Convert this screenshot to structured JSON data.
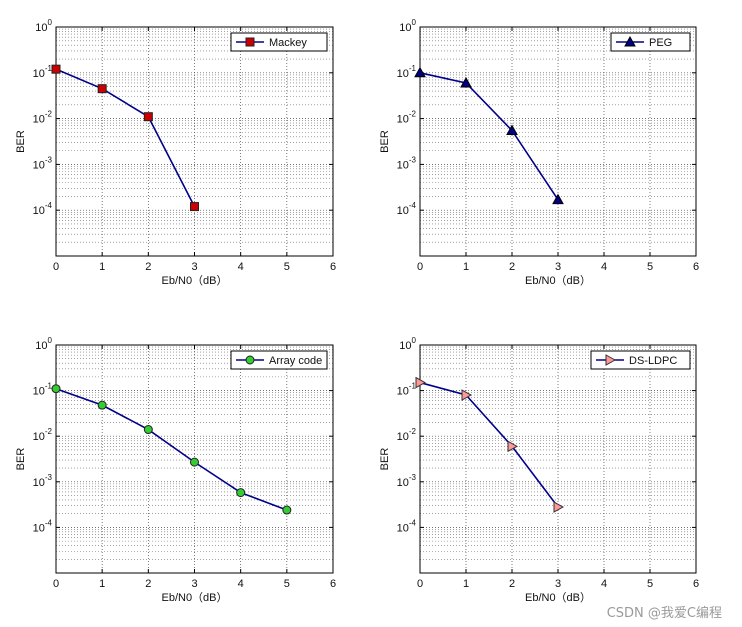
{
  "chart_data": [
    {
      "type": "line",
      "xlabel": "Eb/N0（dB）",
      "ylabel": "BER",
      "x_scale": "linear",
      "y_scale": "log",
      "xlim": [
        0,
        6
      ],
      "ylim": [
        1e-05,
        1
      ],
      "xticks": [
        0,
        1,
        2,
        3,
        4,
        5,
        6
      ],
      "yticks": [
        1,
        0.1,
        0.01,
        0.001,
        0.0001
      ],
      "grid": true,
      "legend": "top-right",
      "series": [
        {
          "name": "Mackey",
          "marker": "square",
          "marker_color": "#cc0000",
          "line_color": "#00008b",
          "x": [
            0,
            1,
            2,
            3
          ],
          "y": [
            0.12,
            0.045,
            0.011,
            0.00012
          ]
        }
      ]
    },
    {
      "type": "line",
      "xlabel": "Eb/N0（dB）",
      "ylabel": "BER",
      "x_scale": "linear",
      "y_scale": "log",
      "xlim": [
        0,
        6
      ],
      "ylim": [
        1e-05,
        1
      ],
      "xticks": [
        0,
        1,
        2,
        3,
        4,
        5,
        6
      ],
      "yticks": [
        1,
        0.1,
        0.01,
        0.001,
        0.0001
      ],
      "grid": true,
      "legend": "top-right",
      "series": [
        {
          "name": "PEG",
          "marker": "triangle-up",
          "marker_color": "#000080",
          "line_color": "#00008b",
          "x": [
            0,
            1,
            2,
            3
          ],
          "y": [
            0.1,
            0.06,
            0.0055,
            0.00017
          ]
        }
      ]
    },
    {
      "type": "line",
      "xlabel": "Eb/N0（dB）",
      "ylabel": "BER",
      "x_scale": "linear",
      "y_scale": "log",
      "xlim": [
        0,
        6
      ],
      "ylim": [
        1e-05,
        1
      ],
      "xticks": [
        0,
        1,
        2,
        3,
        4,
        5,
        6
      ],
      "yticks": [
        1,
        0.1,
        0.01,
        0.001,
        0.0001
      ],
      "grid": true,
      "legend": "top-right",
      "series": [
        {
          "name": "Array code",
          "marker": "circle",
          "marker_color": "#33cc33",
          "line_color": "#00008b",
          "x": [
            0,
            1,
            2,
            3,
            4,
            5
          ],
          "y": [
            0.11,
            0.048,
            0.014,
            0.0027,
            0.00058,
            0.00024
          ]
        }
      ]
    },
    {
      "type": "line",
      "xlabel": "Eb/N0（dB）",
      "ylabel": "BER",
      "x_scale": "linear",
      "y_scale": "log",
      "xlim": [
        0,
        6
      ],
      "ylim": [
        1e-05,
        1
      ],
      "xticks": [
        0,
        1,
        2,
        3,
        4,
        5,
        6
      ],
      "yticks": [
        1,
        0.1,
        0.01,
        0.001,
        0.0001
      ],
      "grid": true,
      "legend": "top-right",
      "series": [
        {
          "name": "DS-LDPC",
          "marker": "triangle-right",
          "marker_color": "#ff9999",
          "line_color": "#00008b",
          "x": [
            0,
            1,
            2,
            3
          ],
          "y": [
            0.15,
            0.08,
            0.006,
            0.00028
          ]
        }
      ]
    }
  ],
  "watermark": "CSDN @我爱C编程"
}
